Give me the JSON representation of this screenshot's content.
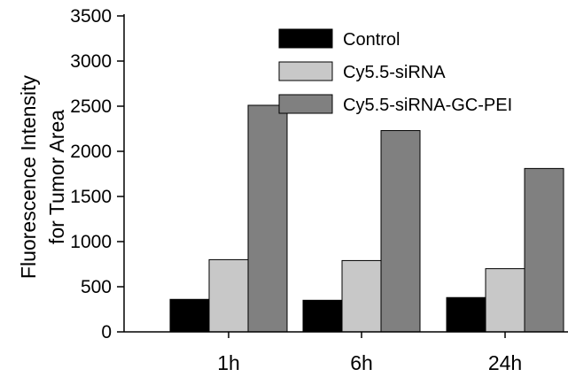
{
  "chart_data": {
    "type": "bar",
    "categories": [
      "1h",
      "6h",
      "24h"
    ],
    "series": [
      {
        "name": "Control",
        "values": [
          360,
          350,
          380
        ],
        "color": "#000000"
      },
      {
        "name": "Cy5.5-siRNA",
        "values": [
          800,
          790,
          700
        ],
        "color": "#c8c8c8"
      },
      {
        "name": "Cy5.5-siRNA-GC-PEI",
        "values": [
          2510,
          2230,
          1810
        ],
        "color": "#808080"
      }
    ],
    "title": "",
    "xlabel": "",
    "ylabel": [
      "Fluorescence Intensity",
      "for Tumor Area"
    ],
    "ylim": [
      0,
      3500
    ],
    "yticks": [
      "0",
      "500",
      "1000",
      "1500",
      "2000",
      "2500",
      "3000",
      "3500"
    ],
    "legend": "top-right",
    "grid": false
  }
}
